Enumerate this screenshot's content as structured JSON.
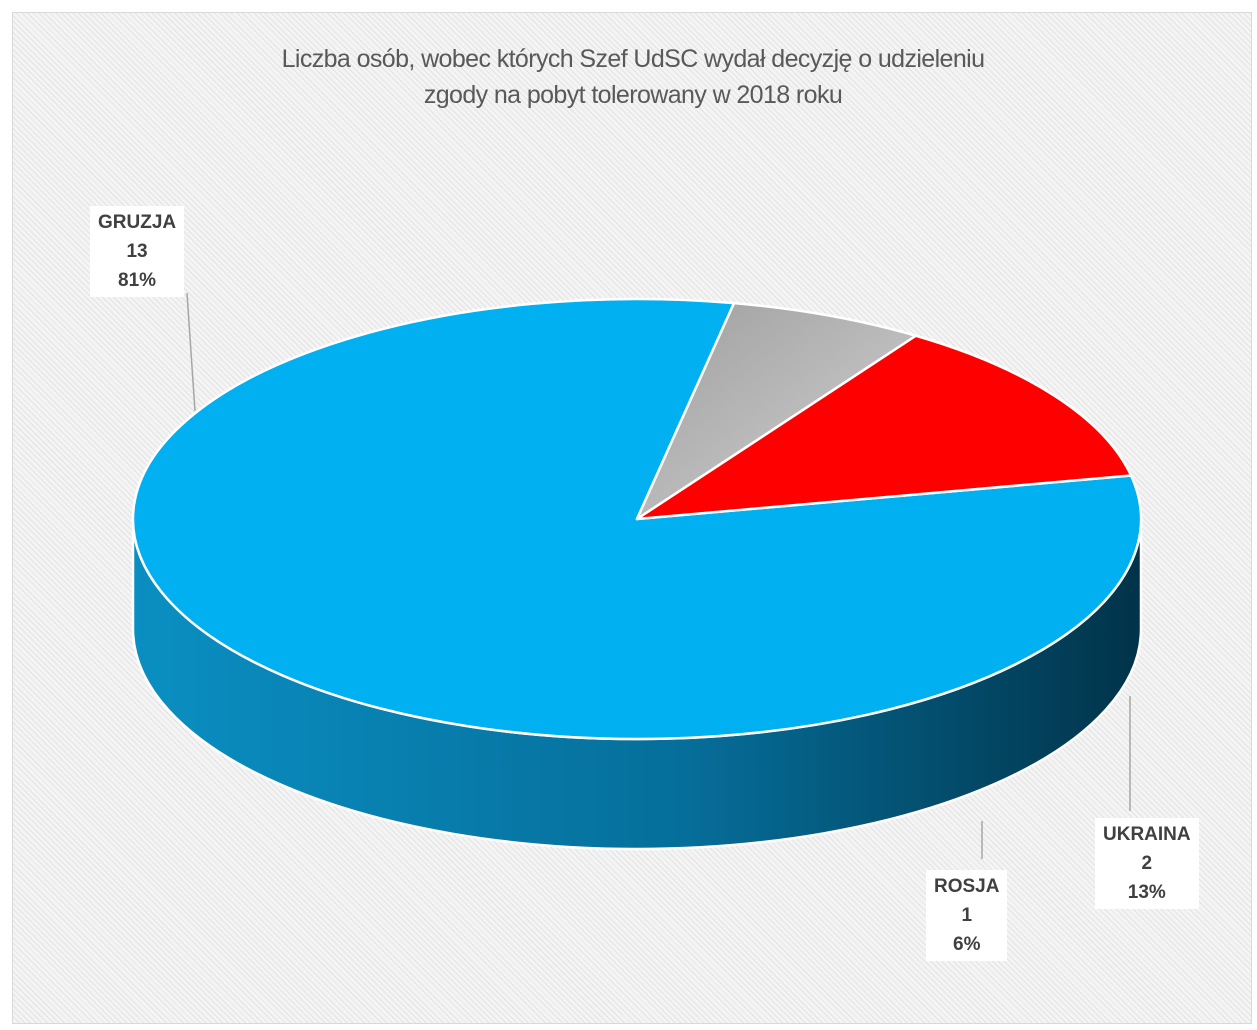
{
  "chart_data": {
    "type": "pie",
    "style": "3d",
    "title": "Liczba osób, wobec których Szef UdSC wydał decyzję o  udzieleniu zgody na pobyt tolerowany w 2018 roku",
    "title_lines": [
      "Liczba osób, wobec których Szef UdSC wydał decyzję o  udzieleniu",
      "zgody na pobyt tolerowany w 2018 roku"
    ],
    "slices": [
      {
        "label": "GRUZJA",
        "value": 13,
        "value_label": "13",
        "percent_label": "81%",
        "color": "#00b0f0",
        "side_color": "#0a8fc2"
      },
      {
        "label": "ROSJA",
        "value": 1,
        "value_label": "1",
        "percent_label": "6%",
        "color": "#bfbfbf",
        "side_color": "#595959"
      },
      {
        "label": "UKRAINA",
        "value": 2,
        "value_label": "2",
        "percent_label": "13%",
        "color": "#ff0000",
        "side_color": "#6b0000"
      }
    ],
    "legend": "none",
    "data_labels": "category, value, percent"
  }
}
